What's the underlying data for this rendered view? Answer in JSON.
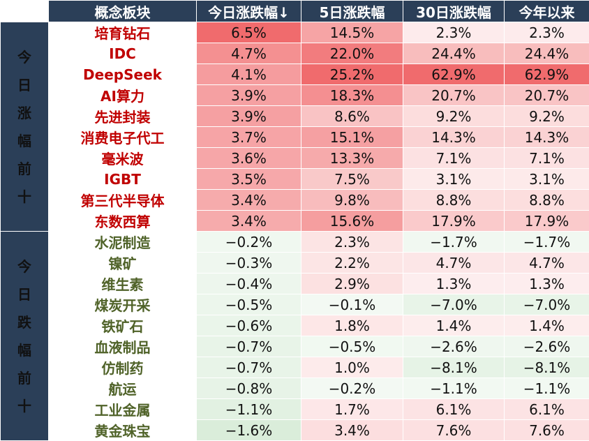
{
  "headers": [
    "概念板块",
    "今日涨跌幅↓",
    "5日涨跌幅",
    "30日涨跌幅",
    "今年以来"
  ],
  "colors": {
    "header_bg": "#2b3f58",
    "gain_name": "#c00000",
    "loss_name": "#4f6228",
    "positive": "#f06b6d",
    "negative": "#8cc88c"
  },
  "groups": [
    {
      "label_chars": [
        "今",
        "日",
        "涨",
        "幅",
        "前",
        "十"
      ],
      "rows": [
        [
          "培育钻石",
          "6.5%",
          "14.5%",
          "2.3%",
          "2.3%"
        ],
        [
          "IDC",
          "4.7%",
          "22.0%",
          "24.4%",
          "24.4%"
        ],
        [
          "DeepSeek",
          "4.1%",
          "25.2%",
          "62.9%",
          "62.9%"
        ],
        [
          "AI算力",
          "3.9%",
          "18.3%",
          "20.7%",
          "20.7%"
        ],
        [
          "先进封装",
          "3.9%",
          "8.6%",
          "9.2%",
          "9.2%"
        ],
        [
          "消费电子代工",
          "3.7%",
          "15.1%",
          "14.3%",
          "14.3%"
        ],
        [
          "毫米波",
          "3.6%",
          "13.3%",
          "7.1%",
          "7.1%"
        ],
        [
          "IGBT",
          "3.5%",
          "7.5%",
          "3.1%",
          "3.1%"
        ],
        [
          "第三代半导体",
          "3.4%",
          "9.8%",
          "8.8%",
          "8.8%"
        ],
        [
          "东数西算",
          "3.4%",
          "15.6%",
          "17.9%",
          "17.9%"
        ]
      ]
    },
    {
      "label_chars": [
        "今",
        "日",
        "跌",
        "幅",
        "前",
        "十"
      ],
      "rows": [
        [
          "水泥制造",
          "−0.2%",
          "2.3%",
          "−1.7%",
          "−1.7%"
        ],
        [
          "镍矿",
          "−0.3%",
          "2.2%",
          "4.7%",
          "4.7%"
        ],
        [
          "维生素",
          "−0.4%",
          "2.9%",
          "1.3%",
          "1.3%"
        ],
        [
          "煤炭开采",
          "−0.5%",
          "−0.1%",
          "−7.0%",
          "−7.0%"
        ],
        [
          "铁矿石",
          "−0.6%",
          "1.8%",
          "1.4%",
          "1.4%"
        ],
        [
          "血液制品",
          "−0.7%",
          "−0.5%",
          "−2.6%",
          "−2.6%"
        ],
        [
          "仿制药",
          "−0.7%",
          "1.0%",
          "−8.1%",
          "−8.1%"
        ],
        [
          "航运",
          "−0.8%",
          "−0.2%",
          "−1.1%",
          "−1.1%"
        ],
        [
          "工业金属",
          "−1.1%",
          "1.7%",
          "6.1%",
          "6.1%"
        ],
        [
          "黄金珠宝",
          "−1.6%",
          "3.4%",
          "7.6%",
          "7.6%"
        ]
      ]
    }
  ]
}
